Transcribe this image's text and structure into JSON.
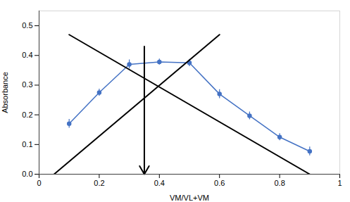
{
  "chart_data": {
    "type": "line",
    "xlabel": "VM/VL+VM",
    "ylabel": "Absorbance",
    "x": [
      0.1,
      0.2,
      0.3,
      0.4,
      0.5,
      0.6,
      0.7,
      0.8,
      0.9
    ],
    "values": [
      0.17,
      0.275,
      0.37,
      0.378,
      0.375,
      0.27,
      0.197,
      0.125,
      0.077
    ],
    "yerr": [
      0.015,
      0.012,
      0.015,
      0.01,
      0.012,
      0.015,
      0.013,
      0.012,
      0.015
    ],
    "color": "#4472C4",
    "marker": "circle",
    "lines": [
      {
        "x": [
          0.05,
          0.6
        ],
        "y": [
          0.0,
          0.47
        ],
        "color": "black"
      },
      {
        "x": [
          0.1,
          0.9
        ],
        "y": [
          0.47,
          0.0
        ],
        "color": "black"
      }
    ],
    "arrow": {
      "x": 0.35,
      "y_start": 0.43,
      "y_end": 0.0,
      "color": "black"
    },
    "xlim": [
      0,
      1
    ],
    "ylim": [
      0,
      0.55
    ],
    "xticks": [
      0,
      0.2,
      0.4,
      0.6,
      0.8,
      1
    ],
    "yticks": [
      {
        "value": 0,
        "label": "0.0"
      },
      0.1,
      0.2,
      0.3,
      0.4,
      0.5
    ],
    "grid": false
  }
}
